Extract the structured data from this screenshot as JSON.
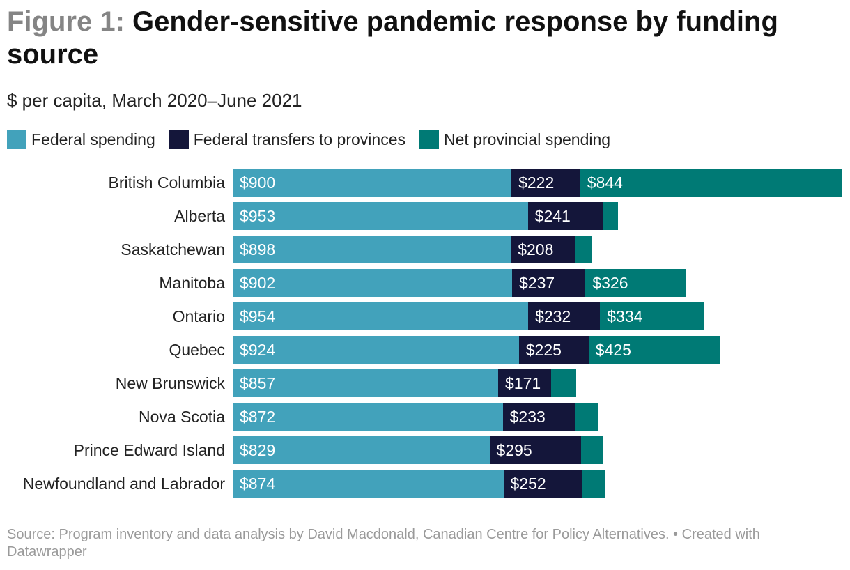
{
  "title_prefix": "Figure 1:",
  "title": "Gender-sensitive pandemic response by funding source",
  "subtitle": "$ per capita, March 2020–June 2021",
  "footer": "Source: Program inventory and data analysis by David Macdonald, Canadian Centre for Policy Alternatives. • Created with Datawrapper",
  "chart_data": {
    "type": "bar",
    "orientation": "horizontal",
    "stacked": true,
    "title": "Gender-sensitive pandemic response by funding source",
    "subtitle": "$ per capita, March 2020–June 2021",
    "categories": [
      "British Columbia",
      "Alberta",
      "Saskatchewan",
      "Manitoba",
      "Ontario",
      "Quebec",
      "New Brunswick",
      "Nova Scotia",
      "Prince Edward Island",
      "Newfoundland and Labrador"
    ],
    "series": [
      {
        "name": "Federal spending",
        "color": "#42a2bb",
        "values": [
          900,
          953,
          898,
          902,
          954,
          924,
          857,
          872,
          829,
          874
        ],
        "labeled": [
          true,
          true,
          true,
          true,
          true,
          true,
          true,
          true,
          true,
          true
        ]
      },
      {
        "name": "Federal transfers to provinces",
        "color": "#14163a",
        "values": [
          222,
          241,
          208,
          237,
          232,
          225,
          171,
          233,
          295,
          252
        ],
        "labeled": [
          true,
          true,
          true,
          true,
          true,
          true,
          true,
          true,
          true,
          true
        ]
      },
      {
        "name": "Net provincial spending",
        "color": "#007a75",
        "values": [
          844,
          50,
          54,
          326,
          334,
          425,
          81,
          77,
          72,
          77
        ],
        "labeled": [
          true,
          false,
          false,
          true,
          true,
          true,
          false,
          false,
          false,
          false
        ]
      }
    ],
    "xlim": [
      0,
      1966
    ],
    "legend": "top-left",
    "grid": false
  }
}
